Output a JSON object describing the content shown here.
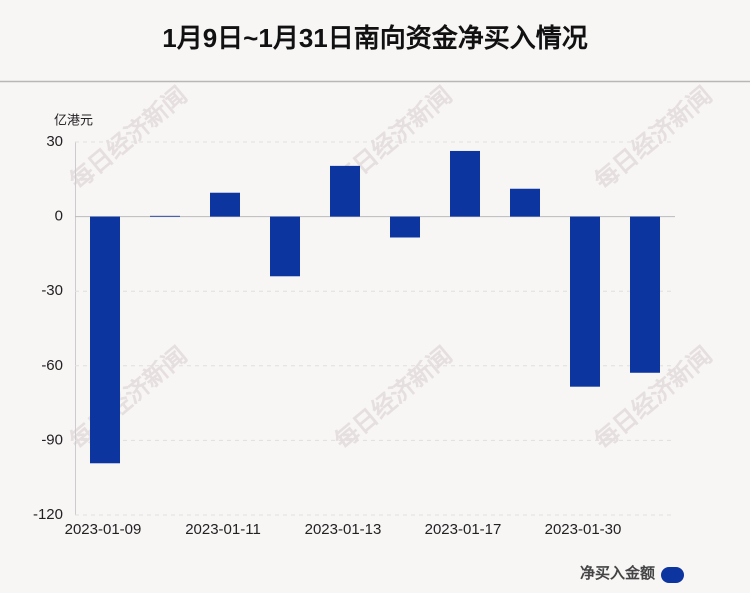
{
  "chart_data": {
    "type": "bar",
    "title": "1月9日~1月31日南向资金净买入情况",
    "y_label": "亿港元",
    "watermark": "每日经济新闻",
    "categories": [
      "2023-01-09",
      null,
      "2023-01-11",
      null,
      "2023-01-13",
      null,
      "2023-01-17",
      null,
      "2023-01-30",
      null
    ],
    "series": [
      {
        "name": "净买入金额",
        "color": "#0d35a0",
        "values": [
          -99.2,
          0.3,
          9.6,
          -24,
          20.4,
          -8.4,
          26.4,
          11.2,
          -68.4,
          -62.8
        ]
      }
    ],
    "ylim": [
      -120,
      30
    ],
    "yticks": [
      -120,
      -90,
      -60,
      -30,
      0,
      30
    ],
    "grid": true,
    "legend": "bottom-right"
  }
}
